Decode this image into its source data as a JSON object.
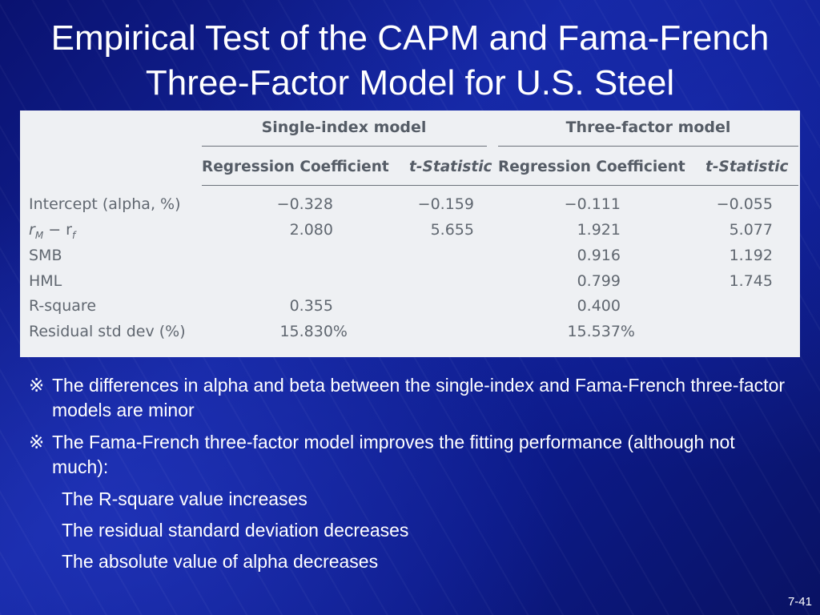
{
  "slide": {
    "title_line1": "Empirical Test of the CAPM and Fama-French",
    "title_line2": "Three-Factor Model for U.S. Steel",
    "number": "7-41"
  },
  "table": {
    "group_headers": [
      "Single-index model",
      "Three-factor model"
    ],
    "column_headers": [
      "Regression Coefficient",
      "t-Statistic",
      "Regression Coefficient",
      "t-Statistic"
    ],
    "rows": [
      {
        "label": "Intercept (alpha, %)",
        "values": [
          "−0.328",
          "−0.159",
          "−0.111",
          "−0.055"
        ]
      },
      {
        "label_main": "r",
        "label_sub1": "M",
        "label_mid": " − r",
        "label_sub2": "f",
        "values": [
          "2.080",
          "5.655",
          "1.921",
          "5.077"
        ]
      },
      {
        "label": "SMB",
        "values": [
          "",
          "",
          "0.916",
          "1.192"
        ]
      },
      {
        "label": "HML",
        "values": [
          "",
          "",
          "0.799",
          "1.745"
        ]
      },
      {
        "label": "R-square",
        "values": [
          "0.355",
          "",
          "0.400",
          ""
        ]
      },
      {
        "label": "Residual std dev (%)",
        "values": [
          "15.830%",
          "",
          "15.537%",
          ""
        ]
      }
    ]
  },
  "bullets": {
    "marker": "※",
    "items": [
      "The differences in alpha and beta between the single-index and Fama-French three-factor models are minor",
      "The Fama-French three-factor model improves the fitting performance (although not much):"
    ],
    "subitems": [
      "The R-square value increases",
      "The residual standard deviation decreases",
      "The absolute value of alpha decreases"
    ]
  },
  "colors": {
    "background": "#1426a0",
    "table_background": "#eef0f3",
    "table_text": "#555c66",
    "text": "#ffffff"
  }
}
